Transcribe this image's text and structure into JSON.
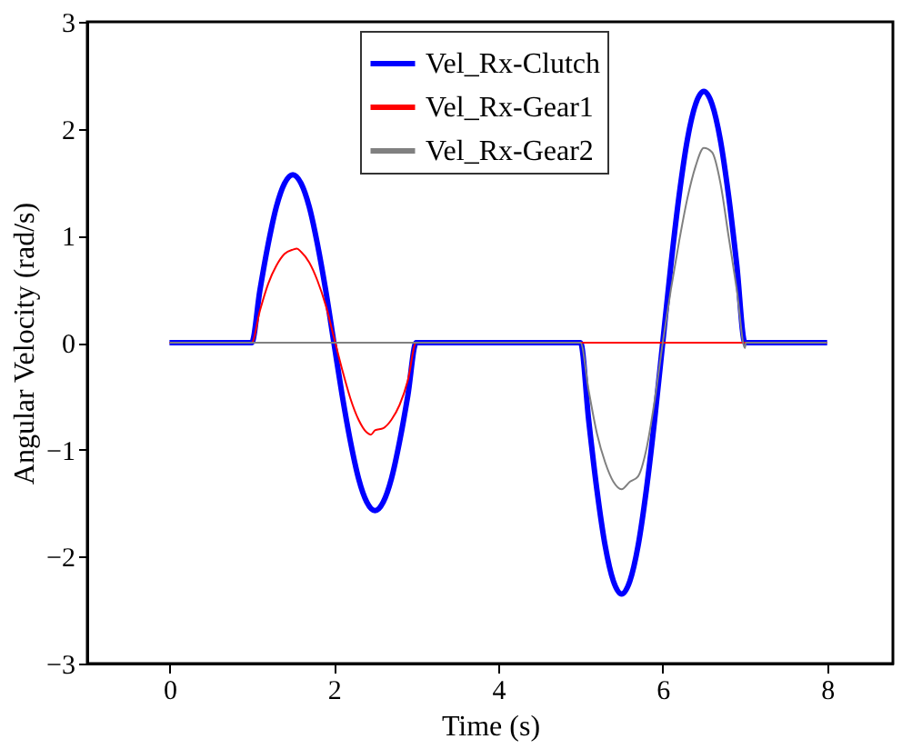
{
  "chart_data": {
    "type": "line",
    "xlabel": "Time (s)",
    "ylabel": "Angular Velocity (rad/s)",
    "xlim": [
      -1,
      8.8
    ],
    "ylim": [
      -3,
      3
    ],
    "xticks": [
      0,
      2,
      4,
      6,
      8
    ],
    "yticks": [
      -3,
      -2,
      -1,
      0,
      1,
      2,
      3
    ],
    "grid": false,
    "legend": "top",
    "line_style": "solid",
    "marker": "none",
    "series": [
      {
        "name": "Vel_Rx-Clutch",
        "color": "#0000ff",
        "x": [
          0,
          1,
          1.1,
          1.2,
          1.3,
          1.4,
          1.5,
          1.6,
          1.7,
          1.8,
          1.9,
          2,
          2.1,
          2.2,
          2.3,
          2.4,
          2.5,
          2.6,
          2.7,
          2.8,
          2.9,
          3,
          5,
          5.1,
          5.2,
          5.3,
          5.4,
          5.5,
          5.6,
          5.7,
          5.8,
          5.9,
          6,
          6.1,
          6.2,
          6.3,
          6.4,
          6.5,
          6.6,
          6.7,
          6.8,
          6.9,
          7,
          8
        ],
        "values": [
          0,
          0,
          0.49,
          0.92,
          1.27,
          1.49,
          1.57,
          1.49,
          1.27,
          0.92,
          0.49,
          0,
          -0.49,
          -0.92,
          -1.27,
          -1.49,
          -1.57,
          -1.49,
          -1.27,
          -0.92,
          -0.49,
          0,
          0,
          -0.73,
          -1.38,
          -1.9,
          -2.23,
          -2.35,
          -2.23,
          -1.9,
          -1.38,
          -0.73,
          0,
          0.73,
          1.38,
          1.9,
          2.23,
          2.35,
          2.23,
          1.9,
          1.38,
          0.73,
          0,
          0
        ]
      },
      {
        "name": "Vel_Rx-Gear1",
        "color": "#ff0000",
        "x": [
          0,
          1,
          1.1,
          1.2,
          1.3,
          1.4,
          1.5,
          1.55,
          1.6,
          1.7,
          1.8,
          1.9,
          2,
          2.1,
          2.2,
          2.3,
          2.4,
          2.45,
          2.5,
          2.6,
          2.7,
          2.8,
          2.9,
          3,
          8
        ],
        "values": [
          0,
          0,
          0.3,
          0.55,
          0.72,
          0.83,
          0.87,
          0.88,
          0.85,
          0.75,
          0.58,
          0.35,
          0.05,
          -0.25,
          -0.52,
          -0.72,
          -0.84,
          -0.86,
          -0.82,
          -0.8,
          -0.72,
          -0.58,
          -0.35,
          0,
          0
        ]
      },
      {
        "name": "Vel_Rx-Gear2",
        "color": "#808080",
        "x": [
          0,
          5,
          5.1,
          5.2,
          5.3,
          5.4,
          5.5,
          5.6,
          5.7,
          5.8,
          5.9,
          6,
          6.1,
          6.2,
          6.3,
          6.4,
          6.5,
          6.6,
          6.7,
          6.8,
          6.9,
          7,
          7.01,
          8
        ],
        "values": [
          0,
          0,
          -0.45,
          -0.85,
          -1.12,
          -1.3,
          -1.37,
          -1.3,
          -1.25,
          -1,
          -0.55,
          0,
          0.5,
          0.95,
          1.35,
          1.65,
          1.82,
          1.78,
          1.5,
          1,
          0.5,
          -0.05,
          0,
          0
        ]
      }
    ]
  }
}
